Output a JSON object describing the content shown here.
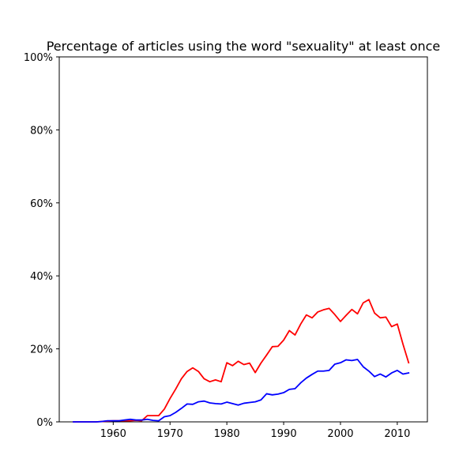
{
  "chart_data": {
    "type": "line",
    "title": "Percentage of articles using the word \"sexuality\" at least once",
    "xlabel": "",
    "ylabel": "",
    "xlim": [
      1950.5,
      2015.3
    ],
    "ylim": [
      0,
      100
    ],
    "x_ticks": [
      1960,
      1970,
      1980,
      1990,
      2000,
      2010
    ],
    "y_ticks": [
      0,
      20,
      40,
      60,
      80,
      100
    ],
    "y_tick_labels": [
      "0%",
      "20%",
      "40%",
      "60%",
      "80%",
      "100%"
    ],
    "grid": false,
    "legend": "none",
    "x": [
      1953,
      1954,
      1955,
      1956,
      1957,
      1958,
      1959,
      1960,
      1961,
      1962,
      1963,
      1964,
      1965,
      1966,
      1967,
      1968,
      1969,
      1970,
      1971,
      1972,
      1973,
      1974,
      1975,
      1976,
      1977,
      1978,
      1979,
      1980,
      1981,
      1982,
      1983,
      1984,
      1985,
      1986,
      1987,
      1988,
      1989,
      1990,
      1991,
      1992,
      1993,
      1994,
      1995,
      1996,
      1997,
      1998,
      1999,
      2000,
      2001,
      2002,
      2003,
      2004,
      2005,
      2006,
      2007,
      2008,
      2009,
      2010,
      2011,
      2012
    ],
    "series": [
      {
        "color": "#ff0000",
        "values": [
          0,
          0,
          0,
          0,
          0,
          0.1,
          0.2,
          0.3,
          0.3,
          0.3,
          0.3,
          0.4,
          0.3,
          1.7,
          1.7,
          1.7,
          3.5,
          6.4,
          9.0,
          11.8,
          13.8,
          14.8,
          13.8,
          11.8,
          11.0,
          11.5,
          11.0,
          16.2,
          15.4,
          16.6,
          15.7,
          16.1,
          13.5,
          16.1,
          18.3,
          20.6,
          20.7,
          22.4,
          25.0,
          23.8,
          26.8,
          29.3,
          28.5,
          30.1,
          30.7,
          31.1,
          29.4,
          27.5,
          29.2,
          30.8,
          29.6,
          32.6,
          33.5,
          29.8,
          28.5,
          28.7,
          26.1,
          26.8,
          21.3,
          16.2
        ]
      },
      {
        "color": "#0000ff",
        "values": [
          0,
          0,
          0,
          0,
          0,
          0.1,
          0.3,
          0.3,
          0.3,
          0.5,
          0.7,
          0.5,
          0.5,
          0.7,
          0.4,
          0.3,
          1.4,
          1.7,
          2.6,
          3.7,
          4.9,
          4.8,
          5.5,
          5.7,
          5.2,
          5.0,
          4.9,
          5.4,
          5.0,
          4.6,
          5.1,
          5.3,
          5.5,
          6.0,
          7.7,
          7.4,
          7.6,
          8.0,
          8.9,
          9.1,
          10.7,
          12.0,
          13.0,
          13.9,
          13.9,
          14.1,
          15.8,
          16.2,
          17.0,
          16.8,
          17.1,
          15.1,
          13.9,
          12.4,
          13.1,
          12.3,
          13.4,
          14.1,
          13.1,
          13.4
        ]
      }
    ]
  }
}
